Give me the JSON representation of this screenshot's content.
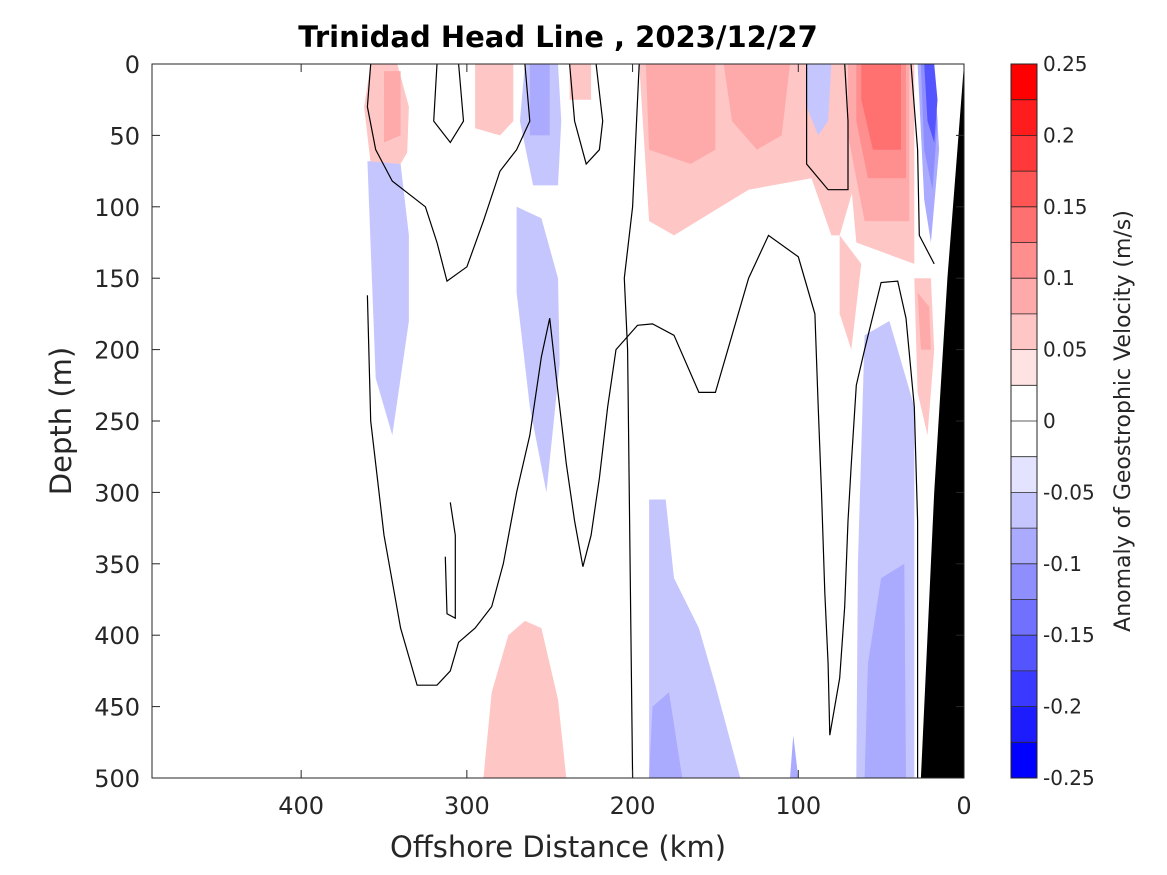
{
  "chart_data": {
    "type": "heatmap",
    "title": "Trinidad Head Line , 2023/12/27",
    "xlabel": "Offshore Distance (km)",
    "ylabel": "Depth (m)",
    "x_reversed": true,
    "y_reversed": true,
    "xlim": [
      0,
      490
    ],
    "ylim": [
      0,
      500
    ],
    "xticks": [
      400,
      300,
      200,
      100,
      0
    ],
    "xtick_labels": [
      "400",
      "300",
      "200",
      "100",
      "0"
    ],
    "yticks": [
      0,
      50,
      100,
      150,
      200,
      250,
      300,
      350,
      400,
      450,
      500
    ],
    "ytick_labels": [
      "0",
      "50",
      "100",
      "150",
      "200",
      "250",
      "300",
      "350",
      "400",
      "450",
      "500"
    ],
    "colorbar": {
      "label": "Anomaly of Geostrophic Velocity (m/s)",
      "range": [
        -0.25,
        0.25
      ],
      "levels": [
        -0.25,
        -0.225,
        -0.2,
        -0.175,
        -0.15,
        -0.125,
        -0.1,
        -0.075,
        -0.05,
        -0.025,
        0,
        0.025,
        0.05,
        0.075,
        0.1,
        0.125,
        0.15,
        0.175,
        0.2,
        0.225,
        0.25
      ],
      "colors": [
        "#0000ff",
        "#1c1cff",
        "#3939ff",
        "#5555ff",
        "#7171ff",
        "#8e8eff",
        "#aaaaff",
        "#c6c6ff",
        "#e3e3ff",
        "#ffffff",
        "#ffffff",
        "#ffe3e3",
        "#ffc6c6",
        "#ffaaaa",
        "#ff8e8e",
        "#ff7171",
        "#ff5555",
        "#ff3939",
        "#ff1c1c",
        "#ff0000"
      ],
      "ticks": [
        0.25,
        0.2,
        0.15,
        0.1,
        0.05,
        0,
        -0.05,
        -0.1,
        -0.15,
        -0.2,
        -0.25
      ],
      "tick_labels": [
        "0.25",
        "0.2",
        "0.15",
        "0.1",
        "0.05",
        "0",
        "-0.05",
        "-0.1",
        "-0.15",
        "-0.2",
        "-0.25"
      ]
    },
    "regions": [
      {
        "level": 0.05,
        "points": [
          [
            358,
            0
          ],
          [
            342,
            0
          ],
          [
            335,
            30
          ],
          [
            336,
            62
          ],
          [
            346,
            82
          ],
          [
            358,
            70
          ],
          [
            362,
            30
          ]
        ]
      },
      {
        "level": 0.075,
        "points": [
          [
            350,
            5
          ],
          [
            340,
            5
          ],
          [
            340,
            50
          ],
          [
            350,
            55
          ]
        ]
      },
      {
        "level": 0.05,
        "points": [
          [
            295,
            0
          ],
          [
            272,
            0
          ],
          [
            272,
            40
          ],
          [
            280,
            50
          ],
          [
            295,
            45
          ]
        ]
      },
      {
        "level": -0.05,
        "points": [
          [
            265,
            0
          ],
          [
            245,
            0
          ],
          [
            243,
            40
          ],
          [
            245,
            85
          ],
          [
            260,
            85
          ],
          [
            268,
            40
          ]
        ]
      },
      {
        "level": -0.075,
        "points": [
          [
            262,
            0
          ],
          [
            250,
            0
          ],
          [
            250,
            50
          ],
          [
            262,
            50
          ]
        ]
      },
      {
        "level": 0.05,
        "points": [
          [
            238,
            0
          ],
          [
            225,
            0
          ],
          [
            225,
            25
          ],
          [
            238,
            25
          ]
        ]
      },
      {
        "level": -0.05,
        "points": [
          [
            360,
            68
          ],
          [
            340,
            70
          ],
          [
            335,
            120
          ],
          [
            335,
            180
          ],
          [
            345,
            260
          ],
          [
            355,
            220
          ]
        ]
      },
      {
        "level": -0.05,
        "points": [
          [
            270,
            100
          ],
          [
            255,
            108
          ],
          [
            245,
            150
          ],
          [
            244,
            210
          ],
          [
            252,
            300
          ],
          [
            262,
            240
          ],
          [
            270,
            160
          ]
        ]
      },
      {
        "level": 0.05,
        "points": [
          [
            196,
            0
          ],
          [
            62,
            0
          ],
          [
            65,
            80
          ],
          [
            75,
            120
          ],
          [
            80,
            120
          ],
          [
            92,
            80
          ],
          [
            130,
            88
          ],
          [
            175,
            120
          ],
          [
            190,
            110
          ]
        ]
      },
      {
        "level": 0.075,
        "points": [
          [
            192,
            0
          ],
          [
            150,
            0
          ],
          [
            150,
            60
          ],
          [
            165,
            70
          ],
          [
            190,
            60
          ]
        ]
      },
      {
        "level": 0.075,
        "points": [
          [
            145,
            0
          ],
          [
            105,
            0
          ],
          [
            110,
            50
          ],
          [
            125,
            60
          ],
          [
            140,
            40
          ]
        ]
      },
      {
        "level": -0.05,
        "points": [
          [
            95,
            0
          ],
          [
            80,
            0
          ],
          [
            82,
            40
          ],
          [
            88,
            50
          ],
          [
            95,
            30
          ]
        ]
      },
      {
        "level": 0.05,
        "points": [
          [
            72,
            0
          ],
          [
            30,
            0
          ],
          [
            30,
            140
          ],
          [
            65,
            125
          ],
          [
            70,
            60
          ]
        ]
      },
      {
        "level": 0.05,
        "points": [
          [
            75,
            120
          ],
          [
            62,
            140
          ],
          [
            68,
            200
          ],
          [
            75,
            175
          ]
        ]
      },
      {
        "level": 0.075,
        "points": [
          [
            70,
            0
          ],
          [
            33,
            0
          ],
          [
            33,
            110
          ],
          [
            60,
            110
          ],
          [
            70,
            50
          ]
        ]
      },
      {
        "level": 0.1,
        "points": [
          [
            65,
            0
          ],
          [
            35,
            0
          ],
          [
            35,
            80
          ],
          [
            58,
            80
          ],
          [
            65,
            40
          ]
        ]
      },
      {
        "level": 0.125,
        "points": [
          [
            62,
            0
          ],
          [
            38,
            0
          ],
          [
            38,
            60
          ],
          [
            55,
            60
          ],
          [
            62,
            25
          ]
        ]
      },
      {
        "level": -0.075,
        "points": [
          [
            28,
            0
          ],
          [
            18,
            0
          ],
          [
            15,
            60
          ],
          [
            20,
            125
          ],
          [
            24,
            95
          ]
        ]
      },
      {
        "level": -0.1,
        "points": [
          [
            26,
            0
          ],
          [
            19,
            0
          ],
          [
            16,
            40
          ],
          [
            19,
            88
          ],
          [
            24,
            60
          ]
        ]
      },
      {
        "level": -0.15,
        "points": [
          [
            24,
            0
          ],
          [
            18,
            0
          ],
          [
            16,
            25
          ],
          [
            18,
            55
          ],
          [
            22,
            40
          ]
        ]
      },
      {
        "level": 0.05,
        "points": [
          [
            30,
            150
          ],
          [
            20,
            150
          ],
          [
            18,
            200
          ],
          [
            22,
            260
          ],
          [
            28,
            230
          ]
        ]
      },
      {
        "level": 0.075,
        "points": [
          [
            28,
            160
          ],
          [
            21,
            170
          ],
          [
            20,
            200
          ],
          [
            26,
            200
          ]
        ]
      },
      {
        "level": 0.05,
        "points": [
          [
            290,
            500
          ],
          [
            240,
            500
          ],
          [
            245,
            445
          ],
          [
            255,
            395
          ],
          [
            265,
            390
          ],
          [
            275,
            400
          ],
          [
            285,
            440
          ]
        ]
      },
      {
        "level": -0.05,
        "points": [
          [
            190,
            500
          ],
          [
            135,
            500
          ],
          [
            150,
            435
          ],
          [
            160,
            395
          ],
          [
            175,
            360
          ],
          [
            180,
            305
          ],
          [
            190,
            305
          ]
        ]
      },
      {
        "level": -0.075,
        "points": [
          [
            190,
            500
          ],
          [
            170,
            500
          ],
          [
            178,
            440
          ],
          [
            188,
            450
          ]
        ]
      },
      {
        "level": -0.075,
        "points": [
          [
            105,
            500
          ],
          [
            100,
            500
          ],
          [
            103,
            470
          ]
        ]
      },
      {
        "level": -0.05,
        "points": [
          [
            65,
            500
          ],
          [
            30,
            500
          ],
          [
            30,
            240
          ],
          [
            45,
            180
          ],
          [
            60,
            190
          ],
          [
            64,
            350
          ]
        ]
      },
      {
        "level": -0.075,
        "points": [
          [
            60,
            500
          ],
          [
            35,
            500
          ],
          [
            36,
            350
          ],
          [
            50,
            360
          ],
          [
            58,
            420
          ]
        ]
      }
    ],
    "contours": [
      {
        "level": 0,
        "points": [
          [
            358,
            0
          ],
          [
            360,
            30
          ],
          [
            355,
            60
          ],
          [
            345,
            82
          ],
          [
            325,
            100
          ],
          [
            318,
            125
          ],
          [
            312,
            152
          ],
          [
            300,
            142
          ],
          [
            290,
            110
          ],
          [
            280,
            75
          ],
          [
            270,
            60
          ],
          [
            262,
            40
          ],
          [
            265,
            0
          ]
        ]
      },
      {
        "level": 0,
        "points": [
          [
            318,
            0
          ],
          [
            320,
            40
          ],
          [
            310,
            55
          ],
          [
            302,
            40
          ],
          [
            305,
            0
          ]
        ]
      },
      {
        "level": 0,
        "points": [
          [
            238,
            0
          ],
          [
            235,
            40
          ],
          [
            228,
            70
          ],
          [
            220,
            60
          ],
          [
            218,
            40
          ],
          [
            222,
            0
          ]
        ]
      },
      {
        "level": 0,
        "points": [
          [
            196,
            0
          ],
          [
            200,
            100
          ],
          [
            205,
            150
          ],
          [
            203,
            200
          ],
          [
            200,
            500
          ]
        ]
      },
      {
        "level": 0,
        "points": [
          [
            95,
            0
          ],
          [
            95,
            70
          ],
          [
            82,
            88
          ],
          [
            70,
            88
          ],
          [
            70,
            40
          ],
          [
            72,
            0
          ]
        ]
      },
      {
        "level": 0,
        "points": [
          [
            32,
            0
          ],
          [
            28,
            60
          ],
          [
            27,
            120
          ],
          [
            18,
            140
          ]
        ]
      },
      {
        "level": 0,
        "points": [
          [
            360,
            162
          ],
          [
            358,
            250
          ],
          [
            350,
            330
          ],
          [
            340,
            395
          ],
          [
            330,
            435
          ],
          [
            318,
            435
          ],
          [
            310,
            425
          ],
          [
            305,
            405
          ],
          [
            295,
            395
          ],
          [
            285,
            380
          ],
          [
            278,
            350
          ],
          [
            270,
            300
          ],
          [
            262,
            260
          ],
          [
            255,
            205
          ],
          [
            250,
            178
          ],
          [
            245,
            230
          ],
          [
            240,
            280
          ],
          [
            235,
            320
          ],
          [
            230,
            352
          ],
          [
            225,
            330
          ],
          [
            220,
            290
          ],
          [
            215,
            240
          ],
          [
            210,
            200
          ],
          [
            197,
            183
          ],
          [
            188,
            182
          ],
          [
            175,
            190
          ],
          [
            160,
            230
          ],
          [
            150,
            230
          ],
          [
            140,
            190
          ],
          [
            130,
            150
          ],
          [
            118,
            120
          ],
          [
            100,
            135
          ],
          [
            90,
            175
          ],
          [
            88,
            240
          ],
          [
            86,
            300
          ],
          [
            84,
            370
          ],
          [
            82,
            420
          ],
          [
            81,
            470
          ],
          [
            75,
            430
          ],
          [
            72,
            380
          ],
          [
            70,
            320
          ],
          [
            68,
            280
          ],
          [
            65,
            225
          ],
          [
            60,
            200
          ],
          [
            50,
            153
          ],
          [
            40,
            152
          ],
          [
            35,
            178
          ],
          [
            30,
            240
          ],
          [
            28,
            320
          ],
          [
            28,
            500
          ]
        ]
      },
      {
        "level": 0,
        "points": [
          [
            310,
            307
          ],
          [
            307,
            330
          ],
          [
            307,
            388
          ],
          [
            312,
            385
          ],
          [
            313,
            345
          ]
        ]
      }
    ],
    "bathymetry": {
      "color": "#000000",
      "points": [
        [
          0,
          0
        ],
        [
          0,
          500
        ],
        [
          26,
          500
        ],
        [
          18,
          300
        ],
        [
          10,
          150
        ],
        [
          4,
          60
        ]
      ]
    }
  }
}
